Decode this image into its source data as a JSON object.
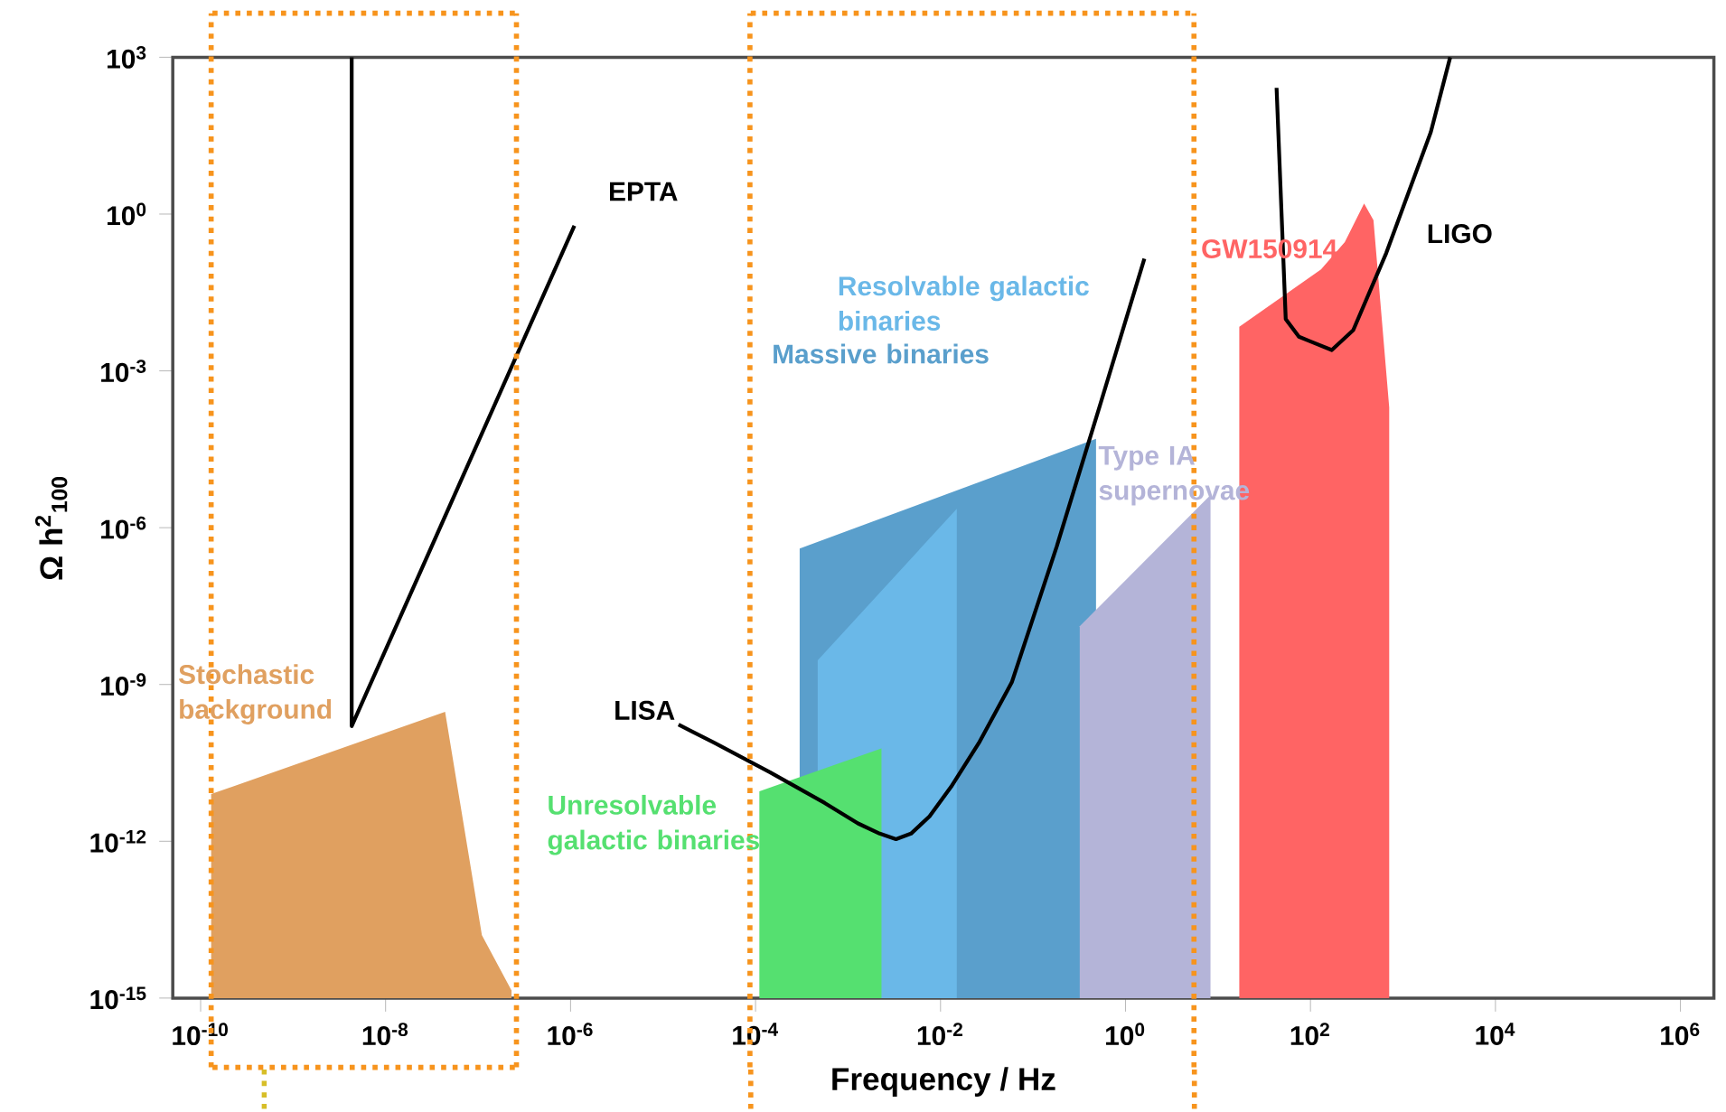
{
  "chart_data": {
    "type": "area",
    "xlabel": "Frequency / Hz",
    "ylabel": "Ω h$^{2}$$_{100}$",
    "log": "xy",
    "grid": false,
    "line_style": "solid",
    "xlim": [
      5e-11,
      2300000.0
    ],
    "ylim": [
      1e-15,
      1000
    ],
    "xticks": [
      {
        "value": 1e-10,
        "label": "10$^{-10}$"
      },
      {
        "value": 1e-08,
        "label": "10$^{-8}$"
      },
      {
        "value": 1e-06,
        "label": "10$^{-6}$"
      },
      {
        "value": 0.0001,
        "label": "10$^{-4}$"
      },
      {
        "value": 0.01,
        "label": "10$^{-2}$"
      },
      {
        "value": 1,
        "label": "10$^{0}$"
      },
      {
        "value": 100,
        "label": "10$^{2}$"
      },
      {
        "value": 10000,
        "label": "10$^{4}$"
      },
      {
        "value": 1000000,
        "label": "10$^{6}$"
      }
    ],
    "yticks": [
      {
        "value": 1000,
        "label": "10$^{3}$"
      },
      {
        "value": 1,
        "label": "10$^{0}$"
      },
      {
        "value": 0.001,
        "label": "10$^{-3}$"
      },
      {
        "value": 1e-06,
        "label": "10$^{-6}$"
      },
      {
        "value": 1e-09,
        "label": "10$^{-9}$"
      },
      {
        "value": 1e-12,
        "label": "10$^{-12}$"
      },
      {
        "value": 1e-15,
        "label": "10$^{-15}$"
      }
    ],
    "series": [
      {
        "name": "Stochastic background",
        "color": "#e0a060",
        "x": [
          1.3e-10,
          4.4e-08,
          1.1e-07,
          2.3e-07
        ],
        "values": [
          8e-12,
          3e-10,
          1.6e-14,
          1.4e-15
        ]
      },
      {
        "name": "Massive binaries",
        "color": "#5a9fcc",
        "x": [
          0.0003,
          0.48
        ],
        "values": [
          4e-07,
          5e-05
        ]
      },
      {
        "name": "Resolvable galactic binaries",
        "color": "#6ab8e8",
        "x": [
          0.00047,
          0.015
        ],
        "values": [
          2.9e-09,
          2.3e-06
        ]
      },
      {
        "name": "Type IA supernovae",
        "color": "#b4b4d8",
        "x": [
          0.32,
          8.3
        ],
        "values": [
          1.3e-08,
          4.2e-06
        ]
      },
      {
        "name": "GW150914",
        "color": "#ff6464",
        "x": [
          17,
          130,
          235,
          380,
          480,
          710
        ],
        "values": [
          0.007,
          0.087,
          0.29,
          1.6,
          0.76,
          0.0002
        ]
      },
      {
        "name": "Unresolvable galactic binaries",
        "color": "#55e070",
        "x": [
          0.00011,
          0.0023
        ],
        "values": [
          9e-12,
          6e-11
        ]
      },
      {
        "name": "EPTA",
        "type": "line",
        "color": "#000000",
        "x": [
          4.3e-09,
          4.3e-09,
          1.1e-06
        ],
        "values": [
          1000,
          1.6e-10,
          0.6
        ]
      },
      {
        "name": "LISA",
        "type": "line",
        "color": "#000000",
        "x": [
          1.47e-05,
          3.6e-05,
          0.000143,
          0.00056,
          0.00128,
          0.0022,
          0.0033,
          0.0048,
          0.0076,
          0.013,
          0.026,
          0.059,
          0.18,
          0.53,
          1.6
        ],
        "values": [
          1.7e-10,
          7.6e-11,
          2.1e-11,
          5.4e-12,
          2.2e-12,
          1.4e-12,
          1.1e-12,
          1.4e-12,
          3e-12,
          1.1e-11,
          7.6e-11,
          1.1e-09,
          4.3e-07,
          0.00022,
          0.14
        ]
      },
      {
        "name": "LIGO",
        "type": "line",
        "color": "#000000",
        "x": [
          43,
          54,
          75,
          98,
          170,
          290,
          660,
          2000,
          3240
        ],
        "values": [
          260,
          0.0098,
          0.0045,
          0.0037,
          0.0025,
          0.006,
          0.18,
          37,
          1000
        ]
      }
    ],
    "ref_lines": [
      {
        "axis": "x",
        "value": 1.3e-10,
        "color": "#f7941d",
        "line_style": "dotted"
      },
      {
        "axis": "x",
        "value": 2.6e-07,
        "color": "#f7941d",
        "line_style": "dotted"
      },
      {
        "axis": "x",
        "value": 8.7e-05,
        "color": "#f7941d",
        "line_style": "dotted"
      },
      {
        "axis": "x",
        "value": 5.5,
        "color": "#f7941d",
        "line_style": "dotted"
      }
    ]
  }
}
